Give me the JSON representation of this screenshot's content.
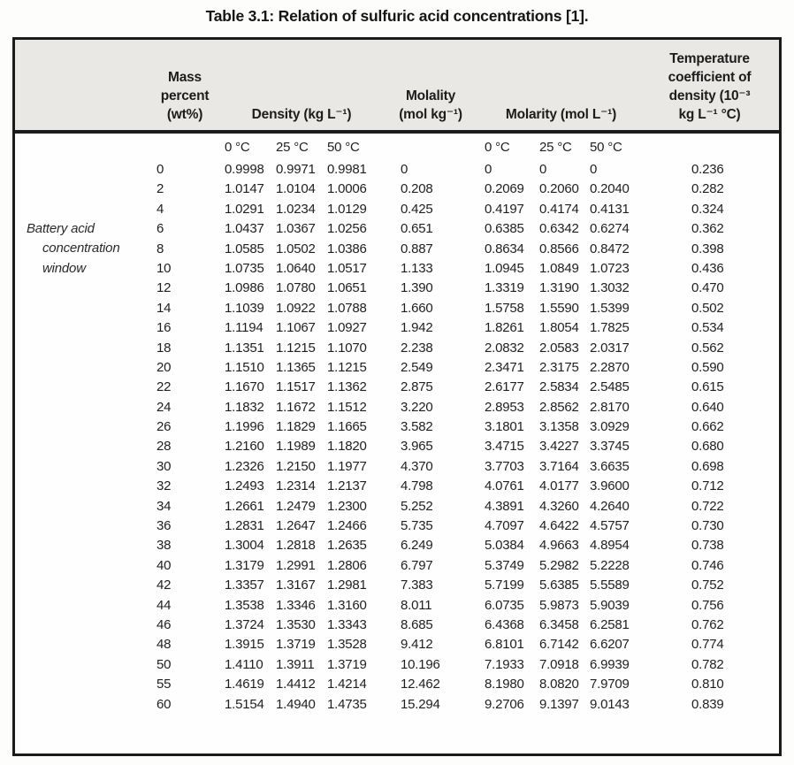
{
  "title": "Table 3.1: Relation of sulfuric acid concentrations [1].",
  "side_label": {
    "lines": [
      "Battery acid",
      "concentration",
      "window"
    ]
  },
  "header": {
    "mass_lines": [
      "Mass",
      "percent",
      "(wt%)"
    ],
    "density": "Density (kg L⁻¹)",
    "molality_lines": [
      "Molality",
      "(mol kg⁻¹)"
    ],
    "molarity": "Molarity (mol L⁻¹)",
    "temp_coeff_lines": [
      "Temperature",
      "coefficient of",
      "density (10⁻³",
      "kg L⁻¹ °C)"
    ]
  },
  "subheader": {
    "temps": [
      "0 °C",
      "25 °C",
      "50 °C"
    ]
  },
  "table": {
    "columns": [
      "Mass percent (wt%)",
      "Density 0 °C (kg L⁻¹)",
      "Density 25 °C (kg L⁻¹)",
      "Density 50 °C (kg L⁻¹)",
      "Molality (mol kg⁻¹)",
      "Molarity 0 °C (mol L⁻¹)",
      "Molarity 25 °C (mol L⁻¹)",
      "Molarity 50 °C (mol L⁻¹)",
      "Temperature coefficient of density (10⁻³ kg L⁻¹ °C)"
    ],
    "rows": [
      [
        "0",
        "0.9998",
        "0.9971",
        "0.9981",
        "0",
        "0",
        "0",
        "0",
        "0.236"
      ],
      [
        "2",
        "1.0147",
        "1.0104",
        "1.0006",
        "0.208",
        "0.2069",
        "0.2060",
        "0.2040",
        "0.282"
      ],
      [
        "4",
        "1.0291",
        "1.0234",
        "1.0129",
        "0.425",
        "0.4197",
        "0.4174",
        "0.4131",
        "0.324"
      ],
      [
        "6",
        "1.0437",
        "1.0367",
        "1.0256",
        "0.651",
        "0.6385",
        "0.6342",
        "0.6274",
        "0.362"
      ],
      [
        "8",
        "1.0585",
        "1.0502",
        "1.0386",
        "0.887",
        "0.8634",
        "0.8566",
        "0.8472",
        "0.398"
      ],
      [
        "10",
        "1.0735",
        "1.0640",
        "1.0517",
        "1.133",
        "1.0945",
        "1.0849",
        "1.0723",
        "0.436"
      ],
      [
        "12",
        "1.0986",
        "1.0780",
        "1.0651",
        "1.390",
        "1.3319",
        "1.3190",
        "1.3032",
        "0.470"
      ],
      [
        "14",
        "1.1039",
        "1.0922",
        "1.0788",
        "1.660",
        "1.5758",
        "1.5590",
        "1.5399",
        "0.502"
      ],
      [
        "16",
        "1.1194",
        "1.1067",
        "1.0927",
        "1.942",
        "1.8261",
        "1.8054",
        "1.7825",
        "0.534"
      ],
      [
        "18",
        "1.1351",
        "1.1215",
        "1.1070",
        "2.238",
        "2.0832",
        "2.0583",
        "2.0317",
        "0.562"
      ],
      [
        "20",
        "1.1510",
        "1.1365",
        "1.1215",
        "2.549",
        "2.3471",
        "2.3175",
        "2.2870",
        "0.590"
      ],
      [
        "22",
        "1.1670",
        "1.1517",
        "1.1362",
        "2.875",
        "2.6177",
        "2.5834",
        "2.5485",
        "0.615"
      ],
      [
        "24",
        "1.1832",
        "1.1672",
        "1.1512",
        "3.220",
        "2.8953",
        "2.8562",
        "2.8170",
        "0.640"
      ],
      [
        "26",
        "1.1996",
        "1.1829",
        "1.1665",
        "3.582",
        "3.1801",
        "3.1358",
        "3.0929",
        "0.662"
      ],
      [
        "28",
        "1.2160",
        "1.1989",
        "1.1820",
        "3.965",
        "3.4715",
        "3.4227",
        "3.3745",
        "0.680"
      ],
      [
        "30",
        "1.2326",
        "1.2150",
        "1.1977",
        "4.370",
        "3.7703",
        "3.7164",
        "3.6635",
        "0.698"
      ],
      [
        "32",
        "1.2493",
        "1.2314",
        "1.2137",
        "4.798",
        "4.0761",
        "4.0177",
        "3.9600",
        "0.712"
      ],
      [
        "34",
        "1.2661",
        "1.2479",
        "1.2300",
        "5.252",
        "4.3891",
        "4.3260",
        "4.2640",
        "0.722"
      ],
      [
        "36",
        "1.2831",
        "1.2647",
        "1.2466",
        "5.735",
        "4.7097",
        "4.6422",
        "4.5757",
        "0.730"
      ],
      [
        "38",
        "1.3004",
        "1.2818",
        "1.2635",
        "6.249",
        "5.0384",
        "4.9663",
        "4.8954",
        "0.738"
      ],
      [
        "40",
        "1.3179",
        "1.2991",
        "1.2806",
        "6.797",
        "5.3749",
        "5.2982",
        "5.2228",
        "0.746"
      ],
      [
        "42",
        "1.3357",
        "1.3167",
        "1.2981",
        "7.383",
        "5.7199",
        "5.6385",
        "5.5589",
        "0.752"
      ],
      [
        "44",
        "1.3538",
        "1.3346",
        "1.3160",
        "8.011",
        "6.0735",
        "5.9873",
        "5.9039",
        "0.756"
      ],
      [
        "46",
        "1.3724",
        "1.3530",
        "1.3343",
        "8.685",
        "6.4368",
        "6.3458",
        "6.2581",
        "0.762"
      ],
      [
        "48",
        "1.3915",
        "1.3719",
        "1.3528",
        "9.412",
        "6.8101",
        "6.7142",
        "6.6207",
        "0.774"
      ],
      [
        "50",
        "1.4110",
        "1.3911",
        "1.3719",
        "10.196",
        "7.1933",
        "7.0918",
        "6.9939",
        "0.782"
      ],
      [
        "55",
        "1.4619",
        "1.4412",
        "1.4214",
        "12.462",
        "8.1980",
        "8.0820",
        "7.9709",
        "0.810"
      ],
      [
        "60",
        "1.5154",
        "1.4940",
        "1.4735",
        "15.294",
        "9.2706",
        "9.1397",
        "9.0143",
        "0.839"
      ]
    ]
  },
  "colors": {
    "header_bg": "#e9e8e5",
    "border": "#1b1b1b",
    "text": "#1f1f1f"
  }
}
